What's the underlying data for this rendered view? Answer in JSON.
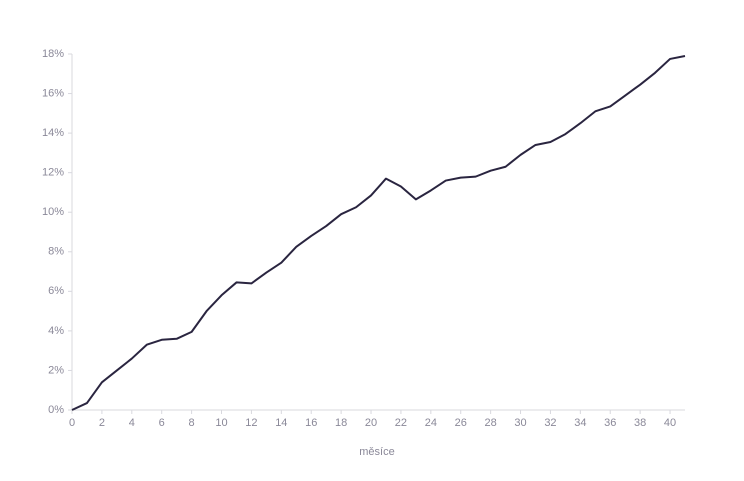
{
  "chart_data": {
    "type": "line",
    "x_label": "měsíce",
    "x": [
      0,
      1,
      2,
      3,
      4,
      5,
      6,
      7,
      8,
      9,
      10,
      11,
      12,
      13,
      14,
      15,
      16,
      17,
      18,
      19,
      20,
      21,
      22,
      23,
      24,
      25,
      26,
      27,
      28,
      29,
      30,
      31,
      32,
      33,
      34,
      35,
      36,
      37,
      38,
      39,
      40,
      41
    ],
    "series": [
      {
        "color": "#2a2540",
        "values": [
          0,
          0.35,
          1.4,
          2.0,
          2.6,
          3.3,
          3.55,
          3.6,
          3.95,
          5.0,
          5.8,
          6.45,
          6.4,
          6.95,
          7.45,
          8.25,
          8.8,
          9.3,
          9.9,
          10.25,
          10.85,
          11.7,
          11.3,
          10.65,
          11.1,
          11.6,
          11.75,
          11.8,
          12.1,
          12.3,
          12.9,
          13.4,
          13.55,
          13.95,
          14.5,
          15.1,
          15.35,
          15.9,
          16.45,
          17.05,
          17.75,
          17.9
        ]
      }
    ],
    "xlim": [
      0,
      41
    ],
    "xticks": [
      0,
      2,
      4,
      6,
      8,
      10,
      12,
      14,
      16,
      18,
      20,
      22,
      24,
      26,
      28,
      30,
      32,
      34,
      36,
      38,
      40
    ],
    "ylim": [
      0,
      18
    ],
    "yticks": [
      {
        "value": 0,
        "label": "0%"
      },
      {
        "value": 2,
        "label": "2%"
      },
      {
        "value": 4,
        "label": "4%"
      },
      {
        "value": 6,
        "label": "6%"
      },
      {
        "value": 8,
        "label": "8%"
      },
      {
        "value": 10,
        "label": "10%"
      },
      {
        "value": 12,
        "label": "12%"
      },
      {
        "value": 14,
        "label": "14%"
      },
      {
        "value": 16,
        "label": "16%"
      },
      {
        "value": 18,
        "label": "18%"
      }
    ],
    "grid": false
  }
}
